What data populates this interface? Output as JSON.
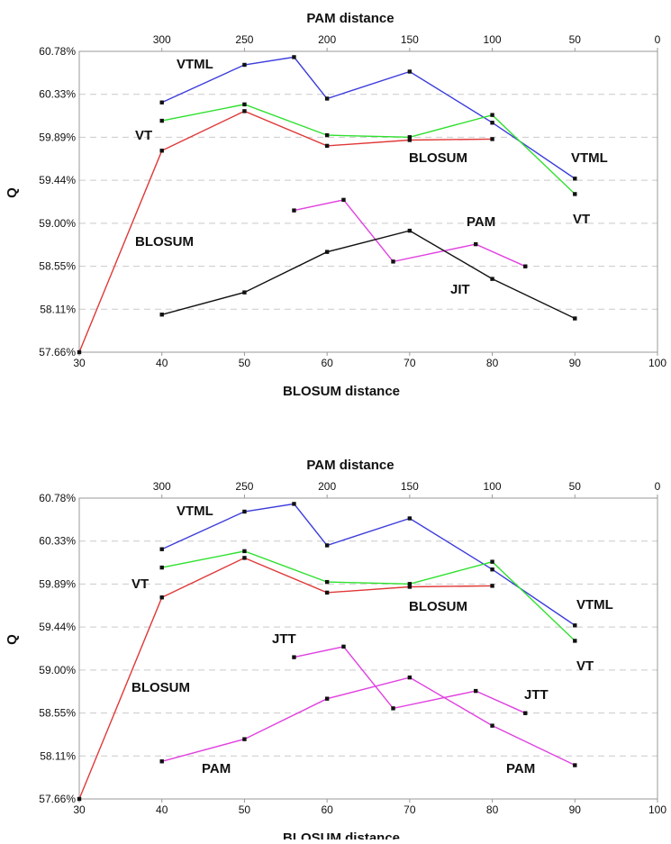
{
  "colors": {
    "VTML": "#3c3cdc",
    "VT": "#2ee02e",
    "BLOSUM": "#e03838",
    "PAM": "#e040e0",
    "JTT": "#e040e0",
    "JIT": "#e040e0",
    "black_curve": "#111111",
    "grid": "#c9c9c9",
    "axis": "#9a9a9a"
  },
  "chart_data": [
    {
      "type": "line",
      "ylabel": "Q",
      "xlabel_bottom": "BLOSUM distance",
      "xlabel_top": "PAM distance",
      "ylim": [
        57.66,
        60.78
      ],
      "yticks": [
        "57.66%",
        "58.11%",
        "58.55%",
        "59.00%",
        "59.44%",
        "59.89%",
        "60.33%",
        "60.78%"
      ],
      "bottom_axis": {
        "range": [
          30,
          100
        ],
        "ticks": [
          "30",
          "40",
          "50",
          "60",
          "70",
          "80",
          "90",
          "100"
        ]
      },
      "top_axis": {
        "range": [
          350,
          0
        ],
        "ticks": [
          "300",
          "250",
          "200",
          "150",
          "100",
          "50",
          "0"
        ]
      },
      "grid": "horizontal dashed",
      "series": [
        {
          "name": "VTML",
          "x": [
            40,
            50,
            56,
            60,
            70,
            80,
            90
          ],
          "y": [
            60.25,
            60.64,
            60.72,
            60.29,
            60.57,
            60.04,
            59.46
          ]
        },
        {
          "name": "VT",
          "x": [
            40,
            50,
            60,
            70,
            80,
            90
          ],
          "y": [
            60.06,
            60.23,
            59.91,
            59.89,
            60.12,
            59.3
          ]
        },
        {
          "name": "BLOSUM",
          "x": [
            30,
            40,
            50,
            60,
            70,
            80
          ],
          "y": [
            57.66,
            59.75,
            60.16,
            59.8,
            59.86,
            59.87
          ]
        },
        {
          "name": "PAM",
          "x": [
            56,
            62,
            68,
            78,
            84
          ],
          "y": [
            59.13,
            59.24,
            58.6,
            58.78,
            58.55
          ]
        },
        {
          "name": "",
          "x": [
            40,
            50,
            60,
            70,
            80,
            90
          ],
          "y": [
            58.05,
            58.28,
            58.7,
            58.92,
            58.42,
            58.01
          ]
        }
      ],
      "labels": {
        "top": "PAM distance",
        "bottom": "BLOSUM distance",
        "y": "Q",
        "vtml_left": "VTML",
        "vt_left": "VT",
        "blosum_left": "BLOSUM",
        "blosum_mid": "BLOSUM",
        "vtml_right": "VTML",
        "vt_right": "VT",
        "pam_mid": "PAM",
        "jit_mid": "JIT"
      }
    },
    {
      "type": "line",
      "ylabel": "Q",
      "xlabel_bottom": "BLOSUM distance",
      "xlabel_top": "PAM distance",
      "ylim": [
        57.66,
        60.78
      ],
      "yticks": [
        "57.66%",
        "58.11%",
        "58.55%",
        "59.00%",
        "59.44%",
        "59.89%",
        "60.33%",
        "60.78%"
      ],
      "bottom_axis": {
        "range": [
          30,
          100
        ],
        "ticks": [
          "30",
          "40",
          "50",
          "60",
          "70",
          "80",
          "90",
          "100"
        ]
      },
      "top_axis": {
        "range": [
          350,
          0
        ],
        "ticks": [
          "300",
          "250",
          "200",
          "150",
          "100",
          "50",
          "0"
        ]
      },
      "grid": "horizontal dashed",
      "series": [
        {
          "name": "VTML",
          "x": [
            40,
            50,
            56,
            60,
            70,
            80,
            90
          ],
          "y": [
            60.25,
            60.64,
            60.72,
            60.29,
            60.57,
            60.04,
            59.46
          ]
        },
        {
          "name": "VT",
          "x": [
            40,
            50,
            60,
            70,
            80,
            90
          ],
          "y": [
            60.06,
            60.23,
            59.91,
            59.89,
            60.12,
            59.3
          ]
        },
        {
          "name": "BLOSUM",
          "x": [
            30,
            40,
            50,
            60,
            70,
            80
          ],
          "y": [
            57.66,
            59.75,
            60.16,
            59.8,
            59.86,
            59.87
          ]
        },
        {
          "name": "JTT",
          "x": [
            56,
            62,
            68,
            78,
            84
          ],
          "y": [
            59.13,
            59.24,
            58.6,
            58.78,
            58.55
          ]
        },
        {
          "name": "PAM",
          "x": [
            40,
            50,
            60,
            70,
            80,
            90
          ],
          "y": [
            58.05,
            58.28,
            58.7,
            58.92,
            58.42,
            58.01
          ]
        }
      ],
      "labels": {
        "top": "PAM distance",
        "bottom": "BLOSUM distance",
        "y": "Q",
        "vtml_left": "VTML",
        "vt_left": "VT",
        "blosum_left": "BLOSUM",
        "blosum_mid": "BLOSUM",
        "vtml_right": "VTML",
        "vt_right": "VT",
        "jtt_left": "JTT",
        "jtt_right": "JTT",
        "pam_left": "PAM",
        "pam_right": "PAM"
      }
    }
  ]
}
